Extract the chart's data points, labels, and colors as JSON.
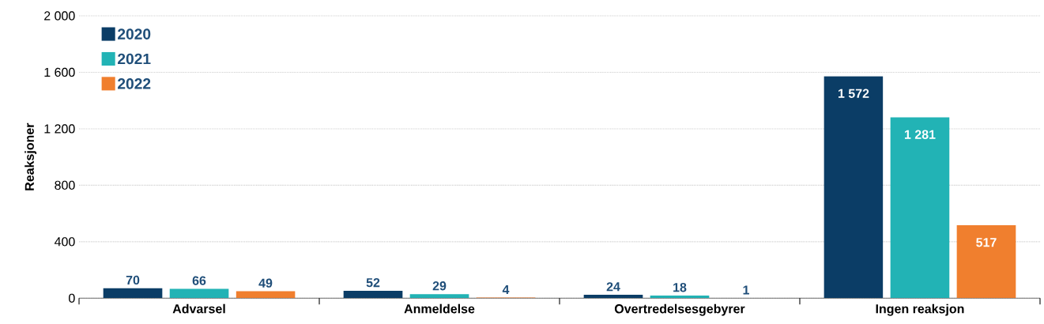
{
  "chart_data": {
    "type": "bar",
    "ylabel": "Reaksjoner",
    "categories": [
      "Advarsel",
      "Anmeldelse",
      "Overtredelsesgebyrer",
      "Ingen reaksjon"
    ],
    "series": [
      {
        "name": "2020",
        "color": "#0b3d66",
        "values": [
          70,
          52,
          24,
          1572
        ],
        "value_labels": [
          "70",
          "52",
          "24",
          "1 572"
        ]
      },
      {
        "name": "2021",
        "color": "#22b3b5",
        "values": [
          66,
          29,
          18,
          1281
        ],
        "value_labels": [
          "66",
          "29",
          "18",
          "1 281"
        ]
      },
      {
        "name": "2022",
        "color": "#f07f2e",
        "values": [
          49,
          4,
          1,
          517
        ],
        "value_labels": [
          "49",
          "4",
          "1",
          "517"
        ]
      }
    ],
    "ylim": [
      0,
      2000
    ],
    "yticks": [
      0,
      400,
      800,
      {
        "value": 1200,
        "label": "1 200"
      },
      {
        "value": 1600,
        "label": "1 600"
      },
      {
        "value": 2000,
        "label": "2 000"
      }
    ],
    "grid": "y",
    "legend": "top left"
  }
}
